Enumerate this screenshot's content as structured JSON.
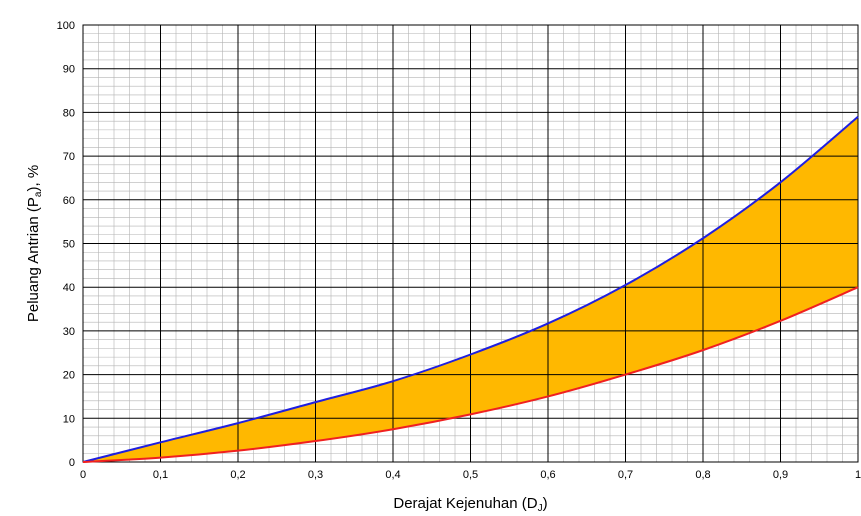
{
  "chart_data": {
    "type": "area",
    "xlabel": {
      "main": "Derajat Kejenuhan (D",
      "sub": "J",
      "end": ")"
    },
    "ylabel": {
      "main": "Peluang Antrian (P",
      "sub": "a",
      "end": "), %"
    },
    "xlim": [
      0,
      1
    ],
    "ylim": [
      0,
      100
    ],
    "x_ticks": [
      0,
      0.1,
      0.2,
      0.3,
      0.4,
      0.5,
      0.6,
      0.7,
      0.8,
      0.9,
      1
    ],
    "x_tick_labels": [
      "0",
      "0,1",
      "0,2",
      "0,3",
      "0,4",
      "0,5",
      "0,6",
      "0,7",
      "0,8",
      "0,9",
      "1"
    ],
    "y_ticks": [
      0,
      10,
      20,
      30,
      40,
      50,
      60,
      70,
      80,
      90,
      100
    ],
    "y_tick_labels": [
      "0",
      "10",
      "20",
      "30",
      "40",
      "50",
      "60",
      "70",
      "80",
      "90",
      "100"
    ],
    "grid": true,
    "fill_color": "#FFB800",
    "series": [
      {
        "color": "#1F1FE0",
        "x": [
          0,
          0.1,
          0.2,
          0.3,
          0.4,
          0.5,
          0.6,
          0.7,
          0.8,
          0.9,
          1.0
        ],
        "values": [
          0,
          4.5,
          8.9,
          13.7,
          18.5,
          24.6,
          31.7,
          40.5,
          51.2,
          64.0,
          79.0
        ]
      },
      {
        "color": "#F02020",
        "x": [
          0,
          0.1,
          0.2,
          0.3,
          0.4,
          0.5,
          0.6,
          0.7,
          0.8,
          0.9,
          1.0
        ],
        "values": [
          0,
          1.0,
          2.6,
          4.8,
          7.5,
          10.9,
          15.0,
          20.0,
          25.6,
          32.3,
          40.0
        ]
      }
    ]
  },
  "colors": {
    "major_grid": "#000000",
    "minor_grid": "#b3b3b3",
    "background": "#ffffff"
  }
}
